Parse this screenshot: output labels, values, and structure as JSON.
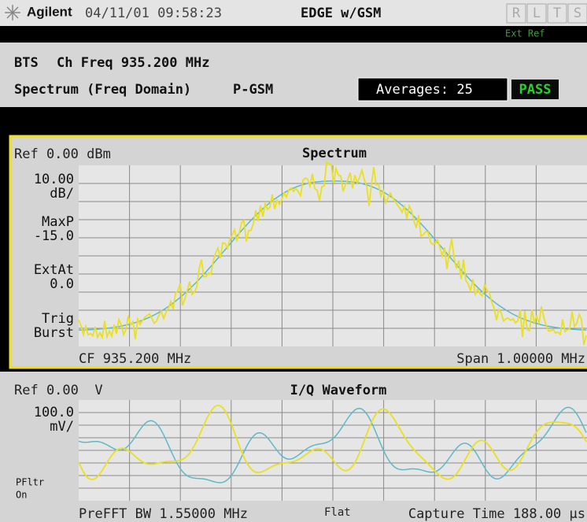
{
  "header": {
    "brand": "Agilent",
    "datetime": "04/11/01 09:58:23",
    "mode": "EDGE w/GSM",
    "indicators": [
      "R",
      "L",
      "T",
      "S"
    ]
  },
  "status": {
    "ext_ref": "Ext Ref"
  },
  "info": {
    "line1_label": "BTS",
    "line1_value": "Ch Freq 935.200 MHz",
    "measurement": "Spectrum (Freq Domain)",
    "band": "P-GSM",
    "averages": "Averages: 25",
    "result": "PASS"
  },
  "spectrum": {
    "ref": "Ref 0.00 dBm",
    "title": "Spectrum",
    "side_labels": [
      "10.00",
      "dB/",
      "MaxP",
      "-15.0",
      "ExtAt",
      "0.0",
      "Trig",
      "Burst"
    ],
    "center": "CF 935.200 MHz",
    "span": "Span 1.00000 MHz"
  },
  "iq": {
    "ref": "Ref 0.00  V",
    "title": "I/Q Waveform",
    "side_labels": [
      "100.0",
      "mV/",
      "PFltr",
      "On"
    ],
    "bw": "PreFFT BW 1.55000 MHz",
    "filter": "Flat",
    "capture": "Capture Time 188.00 µs"
  }
}
